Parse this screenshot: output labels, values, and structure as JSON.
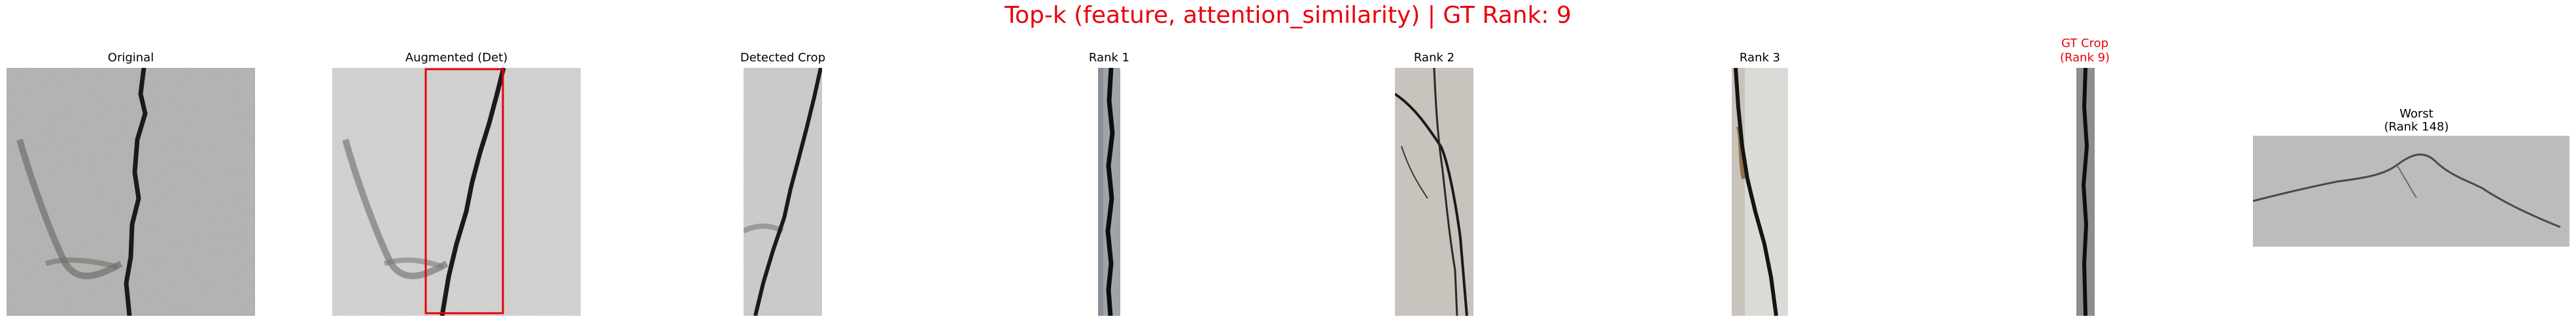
{
  "figure": {
    "title": "Top-k (feature, attention_similarity) | GT Rank: 9",
    "title_color": "#e8000b",
    "highlight_color": "#e8000b"
  },
  "panels": [
    {
      "id": "original",
      "caption": "Original"
    },
    {
      "id": "augmented",
      "caption": "Augmented (Det)"
    },
    {
      "id": "detected",
      "caption": "Detected Crop"
    },
    {
      "id": "rank1",
      "caption": "Rank 1"
    },
    {
      "id": "rank2",
      "caption": "Rank 2"
    },
    {
      "id": "rank3",
      "caption": "Rank 3"
    },
    {
      "id": "gt",
      "caption_line1": "GT Crop",
      "caption_line2": "(Rank 9)"
    },
    {
      "id": "worst",
      "caption_line1": "Worst",
      "caption_line2": "(Rank 148)"
    }
  ]
}
